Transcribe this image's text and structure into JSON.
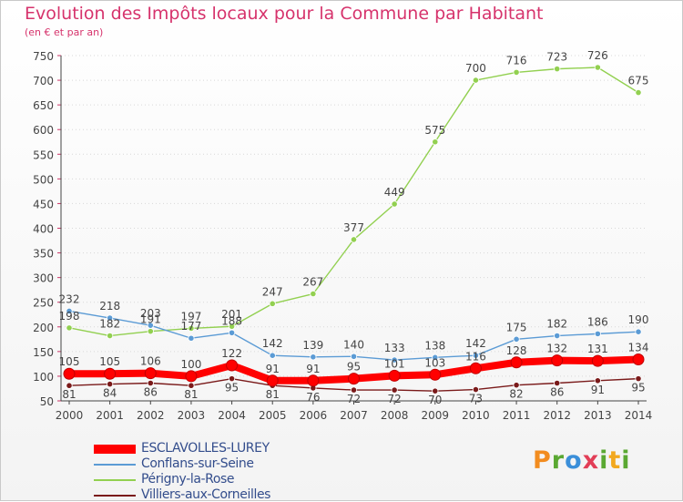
{
  "title": "Evolution des Impôts locaux pour la Commune par Habitant",
  "subtitle": "(en € et par an)",
  "brand": "Proxiti",
  "chart_data": {
    "type": "line",
    "title": "Evolution des Impôts locaux pour la Commune par Habitant",
    "subtitle": "(en € et par an)",
    "x": [
      "2000",
      "2001",
      "2002",
      "2003",
      "2004",
      "2005",
      "2006",
      "2007",
      "2008",
      "2009",
      "2010",
      "2011",
      "2012",
      "2013",
      "2014"
    ],
    "ylim": [
      50,
      750
    ],
    "yticks": [
      50,
      100,
      150,
      200,
      250,
      300,
      350,
      400,
      450,
      500,
      550,
      600,
      650,
      700,
      750
    ],
    "grid": "horizontal dotted",
    "legend_position": "bottom-left",
    "series": [
      {
        "name": "ESCLAVOLLES-LUREY",
        "color": "#ff0000",
        "values": [
          105,
          105,
          106,
          100,
          122,
          91,
          91,
          95,
          101,
          103,
          116,
          128,
          132,
          131,
          134
        ],
        "labels": [
          "105",
          "105",
          "106",
          "100",
          "122",
          "91",
          "91",
          "95",
          "101",
          "103",
          "116",
          "128",
          "132",
          "131",
          "134"
        ]
      },
      {
        "name": "Conflans-sur-Seine",
        "color": "#5b9bd5",
        "values": [
          232,
          218,
          203,
          177,
          188,
          142,
          139,
          140,
          133,
          138,
          142,
          175,
          182,
          186,
          190
        ],
        "labels": [
          "232",
          "218",
          "203",
          "177",
          "188",
          "142",
          "139",
          "140",
          "133",
          "138",
          "142",
          "175",
          "182",
          "186",
          "190"
        ]
      },
      {
        "name": "Périgny-la-Rose",
        "color": "#92d050",
        "values": [
          198,
          182,
          191,
          197,
          201,
          247,
          267,
          377,
          449,
          575,
          700,
          716,
          723,
          726,
          675
        ],
        "labels": [
          "198",
          "182",
          "191",
          "197",
          "201",
          "247",
          "267",
          "377",
          "449",
          "575",
          "700",
          "716",
          "723",
          "726",
          "675"
        ]
      },
      {
        "name": "Villiers-aux-Corneilles",
        "color": "#7a1a1a",
        "values": [
          81,
          84,
          86,
          81,
          95,
          81,
          76,
          72,
          72,
          70,
          73,
          82,
          86,
          91,
          95
        ],
        "labels": [
          "81",
          "84",
          "86",
          "81",
          "95",
          "81",
          "76",
          "72",
          "72",
          "70",
          "73",
          "82",
          "86",
          "91",
          "95"
        ]
      }
    ]
  }
}
